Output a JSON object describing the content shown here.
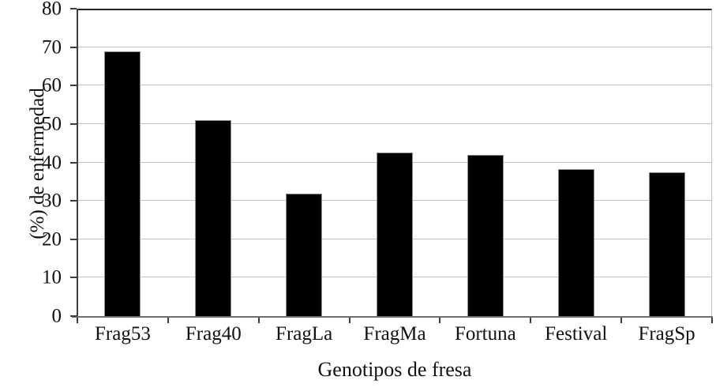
{
  "chart_data": {
    "type": "bar",
    "title": "",
    "categories": [
      "Frag53",
      "Frag40",
      "FragLa",
      "FragMa",
      "Fortuna",
      "Festival",
      "FragSp"
    ],
    "values": [
      69,
      51,
      31.8,
      42.6,
      41.9,
      38.2,
      37.4
    ],
    "xlabel": "Genotipos de fresa",
    "ylabel": "(%) de enfermedad",
    "ylim": [
      0,
      80
    ],
    "yticks": [
      0,
      10,
      20,
      30,
      40,
      50,
      60,
      70,
      80
    ],
    "grid": true,
    "legend": "none",
    "bar_color": "#000000",
    "bar_border_color": "#8c8c8c",
    "gridline_color": "#c2c2c2",
    "axis_color": "#3d3d3d",
    "plot_top_border_color": "#262626"
  }
}
